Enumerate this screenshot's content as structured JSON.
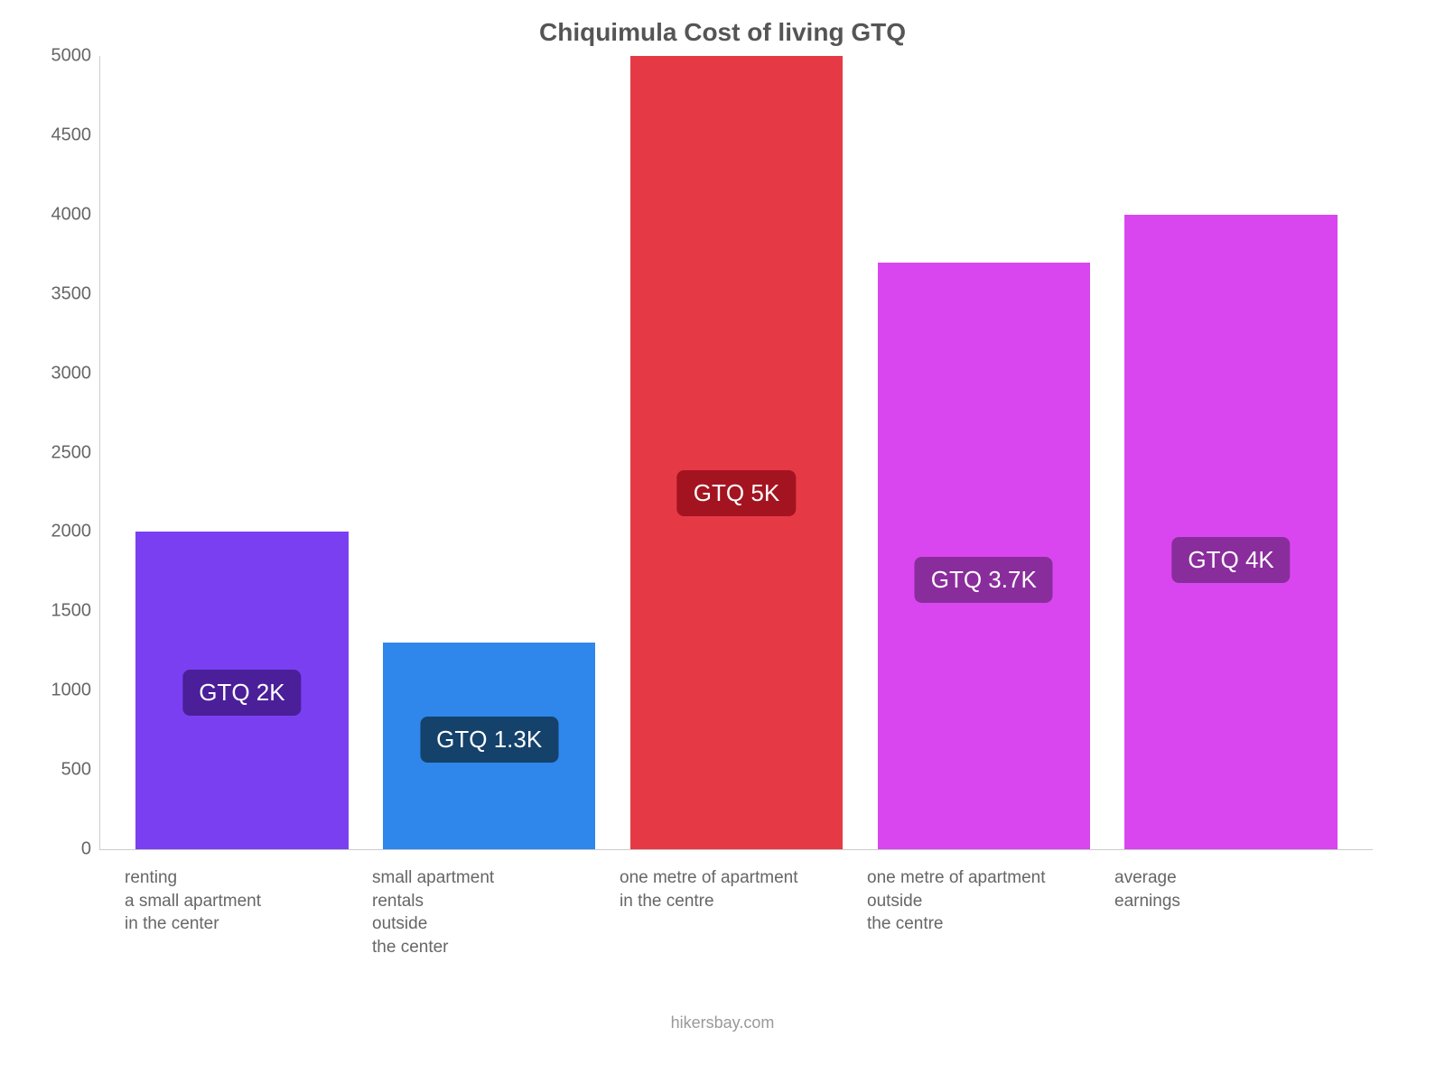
{
  "chart": {
    "type": "bar",
    "title": "Chiquimula Cost of living GTQ",
    "title_color": "#555555",
    "title_fontsize": 28,
    "background_color": "#ffffff",
    "axis_line_color": "#cccccc",
    "ylim_min": 0,
    "ylim_max": 5000,
    "ytick_step": 500,
    "ytick_color": "#666666",
    "ytick_fontsize": 20,
    "xlabel_color": "#666666",
    "xlabel_fontsize": 19,
    "bar_width_pct": 86,
    "badge_fontsize": 26,
    "badge_text_color": "#ffffff",
    "yticks": [
      {
        "value": 0,
        "label": "0"
      },
      {
        "value": 500,
        "label": "500"
      },
      {
        "value": 1000,
        "label": "1000"
      },
      {
        "value": 1500,
        "label": "1500"
      },
      {
        "value": 2000,
        "label": "2000"
      },
      {
        "value": 2500,
        "label": "2500"
      },
      {
        "value": 3000,
        "label": "3000"
      },
      {
        "value": 3500,
        "label": "3500"
      },
      {
        "value": 4000,
        "label": "4000"
      },
      {
        "value": 4500,
        "label": "4500"
      },
      {
        "value": 5000,
        "label": "5000"
      }
    ],
    "bars": [
      {
        "category": "renting\na small apartment\nin the center",
        "value": 2000,
        "bar_color": "#7b3ff2",
        "badge_text": "GTQ 2K",
        "badge_bg": "#4a1f99"
      },
      {
        "category": "small apartment\nrentals\noutside\nthe center",
        "value": 1300,
        "bar_color": "#2f86eb",
        "badge_text": "GTQ 1.3K",
        "badge_bg": "#14426b"
      },
      {
        "category": "one metre of apartment\nin the centre",
        "value": 5000,
        "bar_color": "#e63946",
        "badge_text": "GTQ 5K",
        "badge_bg": "#a31420"
      },
      {
        "category": "one metre of apartment\noutside\nthe centre",
        "value": 3700,
        "bar_color": "#d946ef",
        "badge_text": "GTQ 3.7K",
        "badge_bg": "#8a2d9c"
      },
      {
        "category": "average\nearnings",
        "value": 4000,
        "bar_color": "#d946ef",
        "badge_text": "GTQ 4K",
        "badge_bg": "#8a2d9c"
      }
    ]
  },
  "attribution": {
    "text": "hikersbay.com",
    "color": "#999999",
    "fontsize": 18
  }
}
